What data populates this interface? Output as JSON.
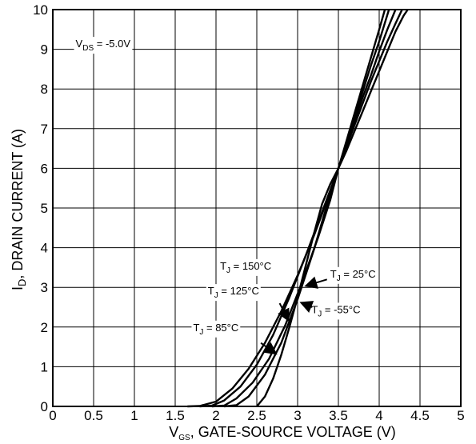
{
  "chart_data": {
    "type": "line",
    "title": "",
    "xlabel": {
      "main": "V",
      "sub": "GS",
      "rest": ", GATE-SOURCE VOLTAGE (V)"
    },
    "ylabel": {
      "main": "I",
      "sub": "D",
      "rest": ", DRAIN CURRENT (A)"
    },
    "xlim": [
      0,
      5
    ],
    "ylim": [
      0,
      10
    ],
    "x_ticks": [
      "0",
      "0.5",
      "1",
      "1.5",
      "2",
      "2.5",
      "3",
      "3.5",
      "4",
      "4.5",
      "5"
    ],
    "y_ticks": [
      "0",
      "1",
      "2",
      "3",
      "4",
      "5",
      "6",
      "7",
      "8",
      "9",
      "10"
    ],
    "grid": true,
    "condition": {
      "main": "V",
      "sub": "DS",
      "rest": " = -5.0V"
    },
    "series": [
      {
        "name": "T_J = 150°C",
        "label_main": "T",
        "label_sub": "J",
        "label_rest": " = 150°C",
        "points": [
          [
            1.65,
            0
          ],
          [
            1.8,
            0.01
          ],
          [
            2.0,
            0.12
          ],
          [
            2.2,
            0.45
          ],
          [
            2.4,
            0.95
          ],
          [
            2.6,
            1.6
          ],
          [
            2.8,
            2.4
          ],
          [
            3.0,
            3.3
          ],
          [
            3.2,
            4.3
          ],
          [
            3.4,
            5.4
          ],
          [
            3.5,
            6.0
          ],
          [
            3.6,
            6.7
          ],
          [
            3.7,
            7.4
          ],
          [
            3.8,
            8.1
          ],
          [
            3.9,
            8.8
          ],
          [
            4.0,
            9.5
          ],
          [
            4.07,
            10
          ]
        ]
      },
      {
        "name": "T_J = 125°C",
        "label_main": "T",
        "label_sub": "J",
        "label_rest": " = 125°C",
        "points": [
          [
            1.8,
            0
          ],
          [
            1.95,
            0.02
          ],
          [
            2.1,
            0.15
          ],
          [
            2.3,
            0.5
          ],
          [
            2.5,
            1.05
          ],
          [
            2.7,
            1.8
          ],
          [
            2.9,
            2.75
          ],
          [
            3.1,
            3.8
          ],
          [
            3.3,
            4.9
          ],
          [
            3.5,
            6.0
          ],
          [
            3.6,
            6.65
          ],
          [
            3.7,
            7.3
          ],
          [
            3.8,
            7.95
          ],
          [
            3.9,
            8.6
          ],
          [
            4.0,
            9.2
          ],
          [
            4.12,
            10
          ]
        ]
      },
      {
        "name": "T_J = 85°C",
        "label_main": "T",
        "label_sub": "J",
        "label_rest": " = 85°C",
        "points": [
          [
            1.95,
            0
          ],
          [
            2.1,
            0.02
          ],
          [
            2.25,
            0.2
          ],
          [
            2.45,
            0.6
          ],
          [
            2.65,
            1.2
          ],
          [
            2.85,
            2.05
          ],
          [
            3.05,
            3.1
          ],
          [
            3.25,
            4.25
          ],
          [
            3.4,
            5.2
          ],
          [
            3.5,
            6.0
          ],
          [
            3.6,
            6.6
          ],
          [
            3.7,
            7.2
          ],
          [
            3.8,
            7.8
          ],
          [
            3.9,
            8.35
          ],
          [
            4.0,
            8.95
          ],
          [
            4.1,
            9.5
          ],
          [
            4.2,
            10
          ]
        ]
      },
      {
        "name": "T_J = 25°C",
        "label_main": "T",
        "label_sub": "J",
        "label_rest": " = 25°C",
        "points": [
          [
            2.1,
            0
          ],
          [
            2.25,
            0.03
          ],
          [
            2.4,
            0.25
          ],
          [
            2.6,
            0.8
          ],
          [
            2.8,
            1.6
          ],
          [
            3.0,
            2.7
          ],
          [
            3.2,
            3.95
          ],
          [
            3.35,
            5.0
          ],
          [
            3.5,
            6.0
          ],
          [
            3.6,
            6.55
          ],
          [
            3.7,
            7.1
          ],
          [
            3.8,
            7.65
          ],
          [
            3.9,
            8.2
          ],
          [
            4.0,
            8.7
          ],
          [
            4.1,
            9.2
          ],
          [
            4.2,
            9.65
          ],
          [
            4.28,
            10
          ]
        ]
      },
      {
        "name": "T_J = -55°C",
        "label_main": "T",
        "label_sub": "J",
        "label_rest": " = -55°C",
        "points": [
          [
            2.5,
            0
          ],
          [
            2.6,
            0.25
          ],
          [
            2.7,
            0.7
          ],
          [
            2.8,
            1.3
          ],
          [
            2.9,
            2.0
          ],
          [
            3.0,
            2.75
          ],
          [
            3.1,
            3.55
          ],
          [
            3.2,
            4.35
          ],
          [
            3.3,
            5.1
          ],
          [
            3.4,
            5.6
          ],
          [
            3.5,
            6.0
          ],
          [
            3.6,
            6.45
          ],
          [
            3.7,
            6.95
          ],
          [
            3.8,
            7.45
          ],
          [
            3.9,
            7.95
          ],
          [
            4.0,
            8.45
          ],
          [
            4.1,
            8.95
          ],
          [
            4.2,
            9.45
          ],
          [
            4.3,
            9.85
          ],
          [
            4.35,
            10
          ]
        ]
      }
    ],
    "annotations": [
      {
        "series": 0,
        "text_x": 2.05,
        "text_y": 3.45,
        "arrow": null
      },
      {
        "series": 1,
        "text_x": 1.9,
        "text_y": 2.82,
        "arrow": [
          [
            2.78,
            2.6
          ],
          [
            2.88,
            2.2
          ]
        ]
      },
      {
        "series": 2,
        "text_x": 1.72,
        "text_y": 1.9,
        "arrow": [
          [
            2.55,
            1.6
          ],
          [
            2.72,
            1.35
          ]
        ]
      },
      {
        "series": 3,
        "text_x": 3.4,
        "text_y": 3.25,
        "arrow": [
          [
            3.36,
            3.2
          ],
          [
            3.12,
            3.05
          ]
        ]
      },
      {
        "series": 4,
        "text_x": 3.17,
        "text_y": 2.35,
        "arrow": [
          [
            3.18,
            2.5
          ],
          [
            3.06,
            2.6
          ]
        ]
      }
    ]
  }
}
